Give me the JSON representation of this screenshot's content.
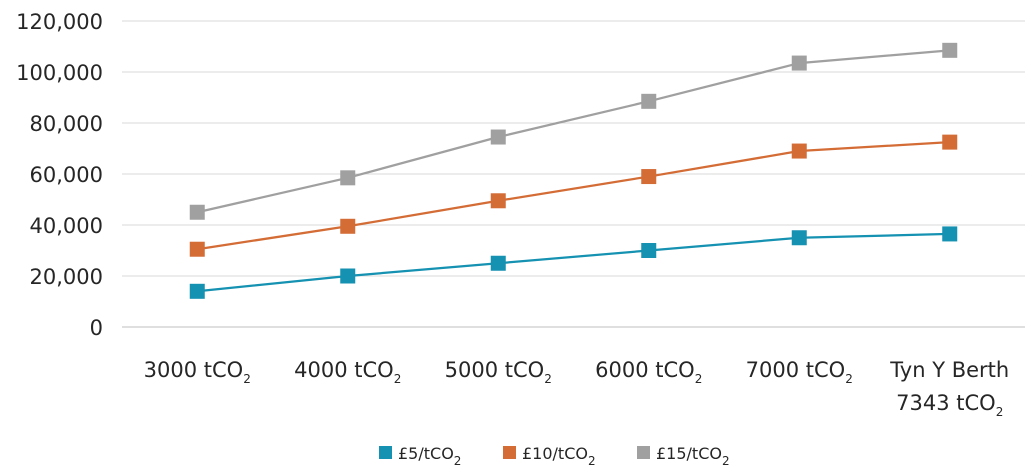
{
  "chart_data": {
    "type": "line",
    "title": "",
    "xlabel": "",
    "ylabel": "",
    "ylim": [
      0,
      120000
    ],
    "yticks": [
      "0",
      "20,000",
      "40,000",
      "60,000",
      "80,000",
      "100,000",
      "120,000"
    ],
    "grid": "horizontal",
    "legend_position": "bottom",
    "categories": [
      {
        "line1": "3000 tCO",
        "line1_sub": "2",
        "line2": "",
        "line2_sub": ""
      },
      {
        "line1": "4000 tCO",
        "line1_sub": "2",
        "line2": "",
        "line2_sub": ""
      },
      {
        "line1": "5000 tCO",
        "line1_sub": "2",
        "line2": "",
        "line2_sub": ""
      },
      {
        "line1": "6000 tCO",
        "line1_sub": "2",
        "line2": "",
        "line2_sub": ""
      },
      {
        "line1": "7000 tCO",
        "line1_sub": "2",
        "line2": "",
        "line2_sub": ""
      },
      {
        "line1": "Tyn Y Berth",
        "line1_sub": "",
        "line2": "7343 tCO",
        "line2_sub": "2"
      }
    ],
    "series": [
      {
        "name": "£5/tCO",
        "name_sub": "2",
        "color": "#1591b1",
        "values": [
          14000,
          20000,
          25000,
          30000,
          35000,
          36500
        ]
      },
      {
        "name": "£10/tCO",
        "name_sub": "2",
        "color": "#d46c36",
        "values": [
          30500,
          39500,
          49500,
          59000,
          69000,
          72500
        ]
      },
      {
        "name": "£15/tCO",
        "name_sub": "2",
        "color": "#a0a0a0",
        "values": [
          45000,
          58500,
          74500,
          88500,
          103500,
          108500
        ]
      }
    ]
  }
}
